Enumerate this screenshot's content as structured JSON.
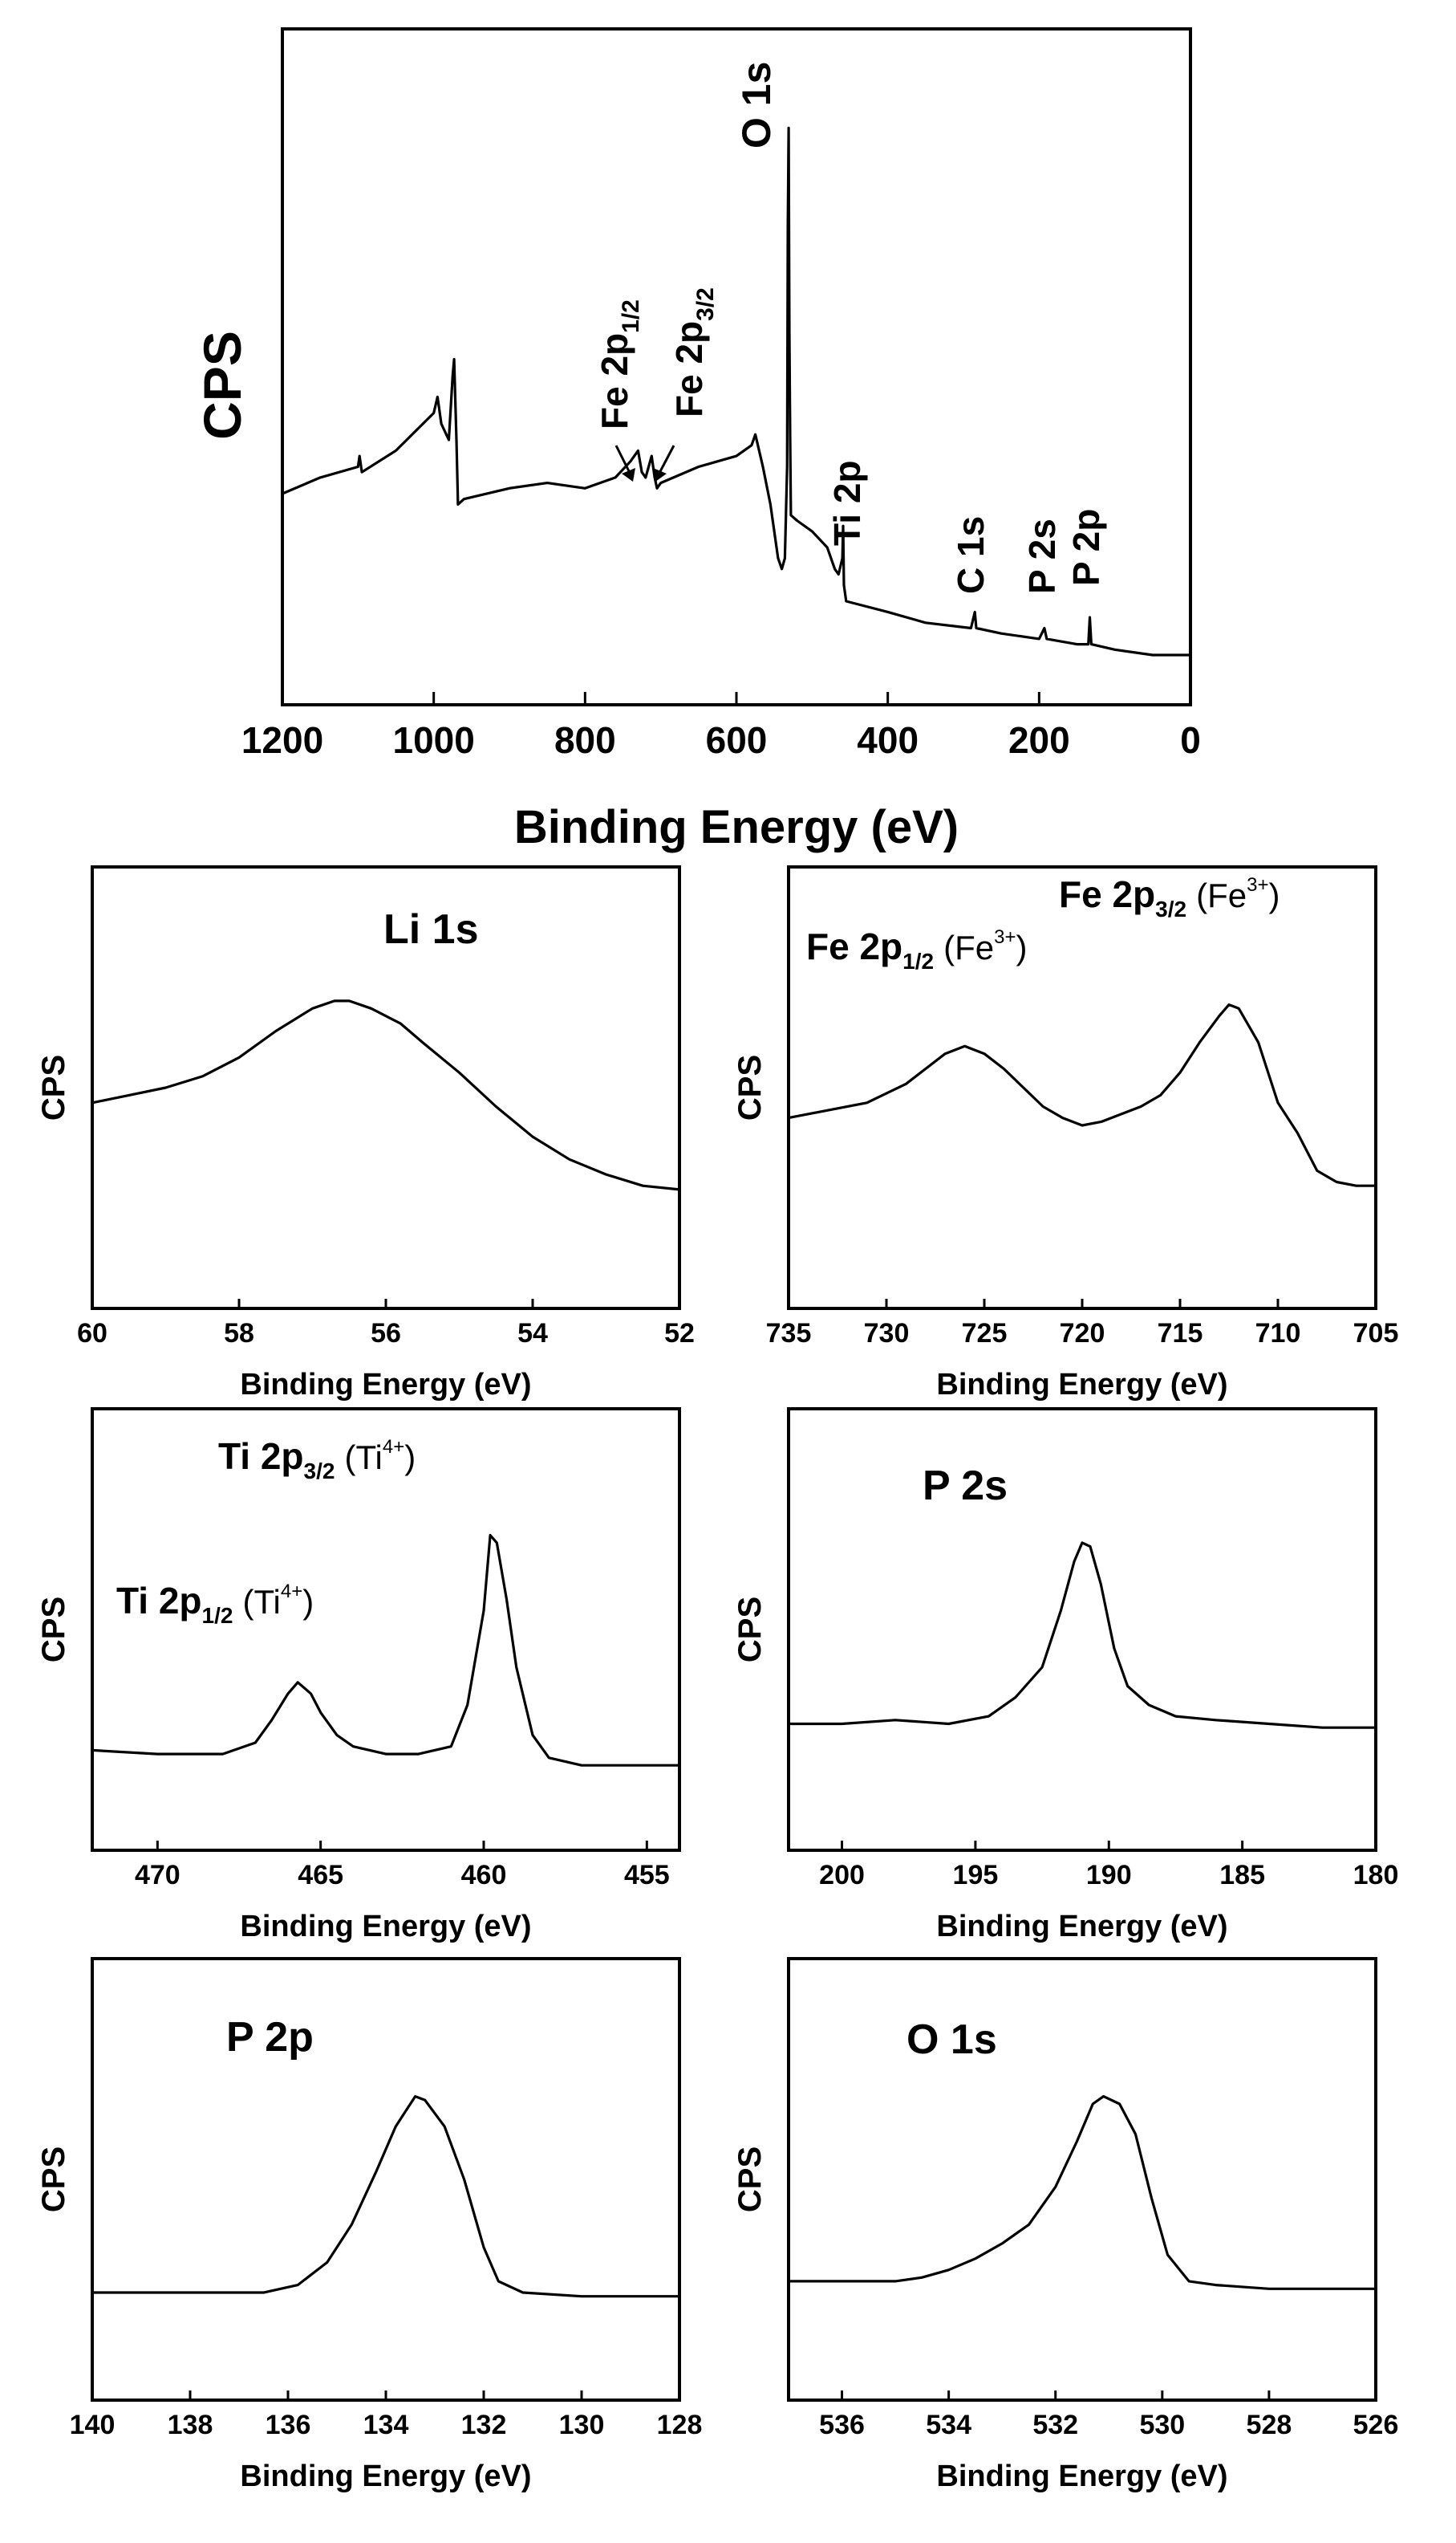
{
  "chart_data": [
    {
      "type": "line",
      "id": "survey",
      "title": "",
      "xlabel": "Binding Energy (eV)",
      "ylabel": "CPS",
      "xlim": [
        1200,
        0
      ],
      "ylim": [
        0,
        100
      ],
      "x_ticks": [
        1200,
        1000,
        800,
        600,
        400,
        200,
        0
      ],
      "x_tick_labels": [
        "1200",
        "1000",
        "800",
        "600",
        "400",
        "200",
        "0"
      ],
      "series": [
        {
          "name": "Survey spectrum",
          "points": [
            [
              1200,
              30
            ],
            [
              1150,
              33
            ],
            [
              1100,
              35
            ],
            [
              1098,
              37
            ],
            [
              1095,
              34
            ],
            [
              1050,
              38
            ],
            [
              1000,
              45
            ],
            [
              995,
              48
            ],
            [
              990,
              43
            ],
            [
              980,
              40
            ],
            [
              975,
              52
            ],
            [
              973,
              55
            ],
            [
              970,
              40
            ],
            [
              968,
              28
            ],
            [
              960,
              29
            ],
            [
              900,
              31
            ],
            [
              850,
              32
            ],
            [
              800,
              31
            ],
            [
              760,
              33
            ],
            [
              740,
              36
            ],
            [
              730,
              38
            ],
            [
              725,
              34
            ],
            [
              720,
              33
            ],
            [
              712,
              37
            ],
            [
              708,
              33
            ],
            [
              705,
              31
            ],
            [
              700,
              32
            ],
            [
              650,
              35
            ],
            [
              600,
              37
            ],
            [
              580,
              39
            ],
            [
              575,
              41
            ],
            [
              565,
              35
            ],
            [
              555,
              28
            ],
            [
              545,
              18
            ],
            [
              540,
              16
            ],
            [
              536,
              18
            ],
            [
              533,
              35
            ],
            [
              532,
              80
            ],
            [
              531,
              98
            ],
            [
              530,
              60
            ],
            [
              529,
              40
            ],
            [
              528,
              26
            ],
            [
              520,
              25
            ],
            [
              500,
              23
            ],
            [
              480,
              20
            ],
            [
              470,
              16
            ],
            [
              465,
              15
            ],
            [
              460,
              18
            ],
            [
              459,
              24
            ],
            [
              458,
              13
            ],
            [
              455,
              10
            ],
            [
              400,
              8
            ],
            [
              350,
              6
            ],
            [
              290,
              5
            ],
            [
              285,
              8
            ],
            [
              283,
              5
            ],
            [
              250,
              4
            ],
            [
              200,
              3
            ],
            [
              193,
              5
            ],
            [
              190,
              3
            ],
            [
              150,
              2
            ],
            [
              135,
              2
            ],
            [
              133,
              7
            ],
            [
              131,
              2
            ],
            [
              100,
              1
            ],
            [
              50,
              0
            ],
            [
              0,
              0
            ]
          ]
        }
      ],
      "annotations": [
        "O 1s",
        "Fe 2p1/2",
        "Fe 2p3/2",
        "Ti 2p",
        "C 1s",
        "P 2s",
        "P 2p"
      ]
    },
    {
      "type": "line",
      "id": "li1s",
      "xlabel": "Binding Energy (eV)",
      "ylabel": "CPS",
      "xlim": [
        60,
        52
      ],
      "ylim": [
        0,
        100
      ],
      "x_ticks": [
        60,
        58,
        56,
        54,
        52
      ],
      "series": [
        {
          "name": "Li 1s",
          "points": [
            [
              60,
              46
            ],
            [
              59.5,
              48
            ],
            [
              59,
              50
            ],
            [
              58.5,
              53
            ],
            [
              58,
              58
            ],
            [
              57.5,
              65
            ],
            [
              57,
              71
            ],
            [
              56.7,
              73
            ],
            [
              56.5,
              73
            ],
            [
              56.2,
              71
            ],
            [
              55.8,
              67
            ],
            [
              55.5,
              62
            ],
            [
              55,
              54
            ],
            [
              54.5,
              45
            ],
            [
              54,
              37
            ],
            [
              53.5,
              31
            ],
            [
              53,
              27
            ],
            [
              52.5,
              24
            ],
            [
              52,
              23
            ]
          ]
        }
      ],
      "annotations": [
        "Li 1s"
      ]
    },
    {
      "type": "line",
      "id": "fe2p",
      "xlabel": "Binding Energy (eV)",
      "ylabel": "CPS",
      "xlim": [
        735,
        705
      ],
      "ylim": [
        0,
        100
      ],
      "x_ticks": [
        735,
        730,
        725,
        720,
        715,
        710,
        705
      ],
      "series": [
        {
          "name": "Fe 2p",
          "points": [
            [
              735,
              42
            ],
            [
              733,
              44
            ],
            [
              731,
              46
            ],
            [
              729,
              51
            ],
            [
              728,
              55
            ],
            [
              727,
              59
            ],
            [
              726,
              61
            ],
            [
              725,
              59
            ],
            [
              724,
              55
            ],
            [
              723,
              50
            ],
            [
              722,
              45
            ],
            [
              721,
              42
            ],
            [
              720,
              40
            ],
            [
              719,
              41
            ],
            [
              718,
              43
            ],
            [
              717,
              45
            ],
            [
              716,
              48
            ],
            [
              715,
              54
            ],
            [
              714,
              62
            ],
            [
              713,
              69
            ],
            [
              712.5,
              72
            ],
            [
              712,
              71
            ],
            [
              711,
              62
            ],
            [
              710,
              46
            ],
            [
              709,
              38
            ],
            [
              708,
              28
            ],
            [
              707,
              25
            ],
            [
              706,
              24
            ],
            [
              705,
              24
            ]
          ]
        }
      ],
      "annotations": [
        "Fe 2p1/2 (Fe3+)",
        "Fe 2p3/2 (Fe3+)"
      ]
    },
    {
      "type": "line",
      "id": "ti2p",
      "xlabel": "Binding Energy (eV)",
      "ylabel": "CPS",
      "xlim": [
        472,
        454
      ],
      "ylim": [
        0,
        100
      ],
      "x_ticks": [
        470,
        465,
        460,
        455
      ],
      "series": [
        {
          "name": "Ti 2p",
          "points": [
            [
              472,
              18
            ],
            [
              470,
              17
            ],
            [
              468,
              17
            ],
            [
              467,
              20
            ],
            [
              466.5,
              26
            ],
            [
              466,
              33
            ],
            [
              465.7,
              36
            ],
            [
              465.3,
              33
            ],
            [
              465,
              28
            ],
            [
              464.5,
              22
            ],
            [
              464,
              19
            ],
            [
              463,
              17
            ],
            [
              462,
              17
            ],
            [
              461,
              19
            ],
            [
              460.5,
              30
            ],
            [
              460,
              55
            ],
            [
              459.8,
              75
            ],
            [
              459.6,
              73
            ],
            [
              459.3,
              58
            ],
            [
              459,
              40
            ],
            [
              458.5,
              22
            ],
            [
              458,
              16
            ],
            [
              457,
              14
            ],
            [
              455,
              14
            ],
            [
              454,
              14
            ]
          ]
        }
      ],
      "annotations": [
        "Ti 2p1/2 (Ti4+)",
        "Ti 2p3/2 (Ti4+)"
      ]
    },
    {
      "type": "line",
      "id": "p2s",
      "xlabel": "Binding Energy (eV)",
      "ylabel": "CPS",
      "xlim": [
        202,
        180
      ],
      "ylim": [
        0,
        100
      ],
      "x_ticks": [
        200,
        195,
        190,
        185,
        180
      ],
      "series": [
        {
          "name": "P 2s",
          "points": [
            [
              202,
              25
            ],
            [
              200,
              25
            ],
            [
              198,
              26
            ],
            [
              196,
              25
            ],
            [
              194.5,
              27
            ],
            [
              193.5,
              32
            ],
            [
              192.5,
              40
            ],
            [
              191.8,
              55
            ],
            [
              191.3,
              68
            ],
            [
              191,
              73
            ],
            [
              190.7,
              72
            ],
            [
              190.3,
              62
            ],
            [
              189.8,
              45
            ],
            [
              189.3,
              35
            ],
            [
              188.5,
              30
            ],
            [
              187.5,
              27
            ],
            [
              186,
              26
            ],
            [
              184,
              25
            ],
            [
              182,
              24
            ],
            [
              180,
              24
            ]
          ]
        }
      ],
      "annotations": [
        "P 2s"
      ]
    },
    {
      "type": "line",
      "id": "p2p",
      "xlabel": "Binding Energy (eV)",
      "ylabel": "CPS",
      "xlim": [
        140,
        128
      ],
      "ylim": [
        0,
        100
      ],
      "x_ticks": [
        140,
        138,
        136,
        134,
        132,
        130,
        128
      ],
      "series": [
        {
          "name": "P 2p",
          "points": [
            [
              140,
              20
            ],
            [
              138,
              20
            ],
            [
              136.5,
              20
            ],
            [
              135.8,
              22
            ],
            [
              135.2,
              28
            ],
            [
              134.7,
              38
            ],
            [
              134.2,
              52
            ],
            [
              133.8,
              64
            ],
            [
              133.4,
              72
            ],
            [
              133.2,
              71
            ],
            [
              132.8,
              64
            ],
            [
              132.4,
              50
            ],
            [
              132,
              32
            ],
            [
              131.7,
              23
            ],
            [
              131.2,
              20
            ],
            [
              130,
              19
            ],
            [
              128,
              19
            ]
          ]
        }
      ],
      "annotations": [
        "P 2p"
      ]
    },
    {
      "type": "line",
      "id": "o1s",
      "xlabel": "Binding Energy (eV)",
      "ylabel": "CPS",
      "xlim": [
        537,
        526
      ],
      "ylim": [
        0,
        100
      ],
      "x_ticks": [
        536,
        534,
        532,
        530,
        528,
        526
      ],
      "series": [
        {
          "name": "O 1s",
          "points": [
            [
              537,
              23
            ],
            [
              536,
              23
            ],
            [
              535,
              23
            ],
            [
              534.5,
              24
            ],
            [
              534,
              26
            ],
            [
              533.5,
              29
            ],
            [
              533,
              33
            ],
            [
              532.5,
              38
            ],
            [
              532,
              48
            ],
            [
              531.6,
              60
            ],
            [
              531.3,
              70
            ],
            [
              531.1,
              72
            ],
            [
              530.8,
              70
            ],
            [
              530.5,
              62
            ],
            [
              530.2,
              45
            ],
            [
              529.9,
              30
            ],
            [
              529.5,
              23
            ],
            [
              529,
              22
            ],
            [
              528,
              21
            ],
            [
              527,
              21
            ],
            [
              526,
              21
            ]
          ]
        }
      ],
      "annotations": [
        "O 1s"
      ]
    }
  ],
  "labels": {
    "cps": "CPS",
    "binding_energy": "Binding Energy (eV)",
    "survey": {
      "o1s": "O 1s",
      "fe2p12_main": "Fe 2p",
      "fe2p12_sub": "1/2",
      "fe2p32_main": "Fe 2p",
      "fe2p32_sub": "3/2",
      "ti2p": "Ti 2p",
      "c1s": "C 1s",
      "p2s": "P 2s",
      "p2p": "P 2p"
    },
    "li": {
      "title": "Li 1s"
    },
    "fe": {
      "a_main": "Fe 2p",
      "a_sub": "1/2",
      "a_open": "(Fe",
      "a_sup": "3+",
      "a_close": ")",
      "b_main": "Fe 2p",
      "b_sub": "3/2",
      "b_open": "(Fe",
      "b_sup": "3+",
      "b_close": ")"
    },
    "ti": {
      "a_main": "Ti 2p",
      "a_sub": "1/2",
      "a_open": "(Ti",
      "a_sup": "4+",
      "a_close": ")",
      "b_main": "Ti 2p",
      "b_sub": "3/2",
      "b_open": "(Ti",
      "b_sup": "4+",
      "b_close": ")"
    },
    "p2s": {
      "title": "P 2s"
    },
    "p2p": {
      "title": "P 2p"
    },
    "o1s": {
      "title": "O 1s"
    }
  }
}
